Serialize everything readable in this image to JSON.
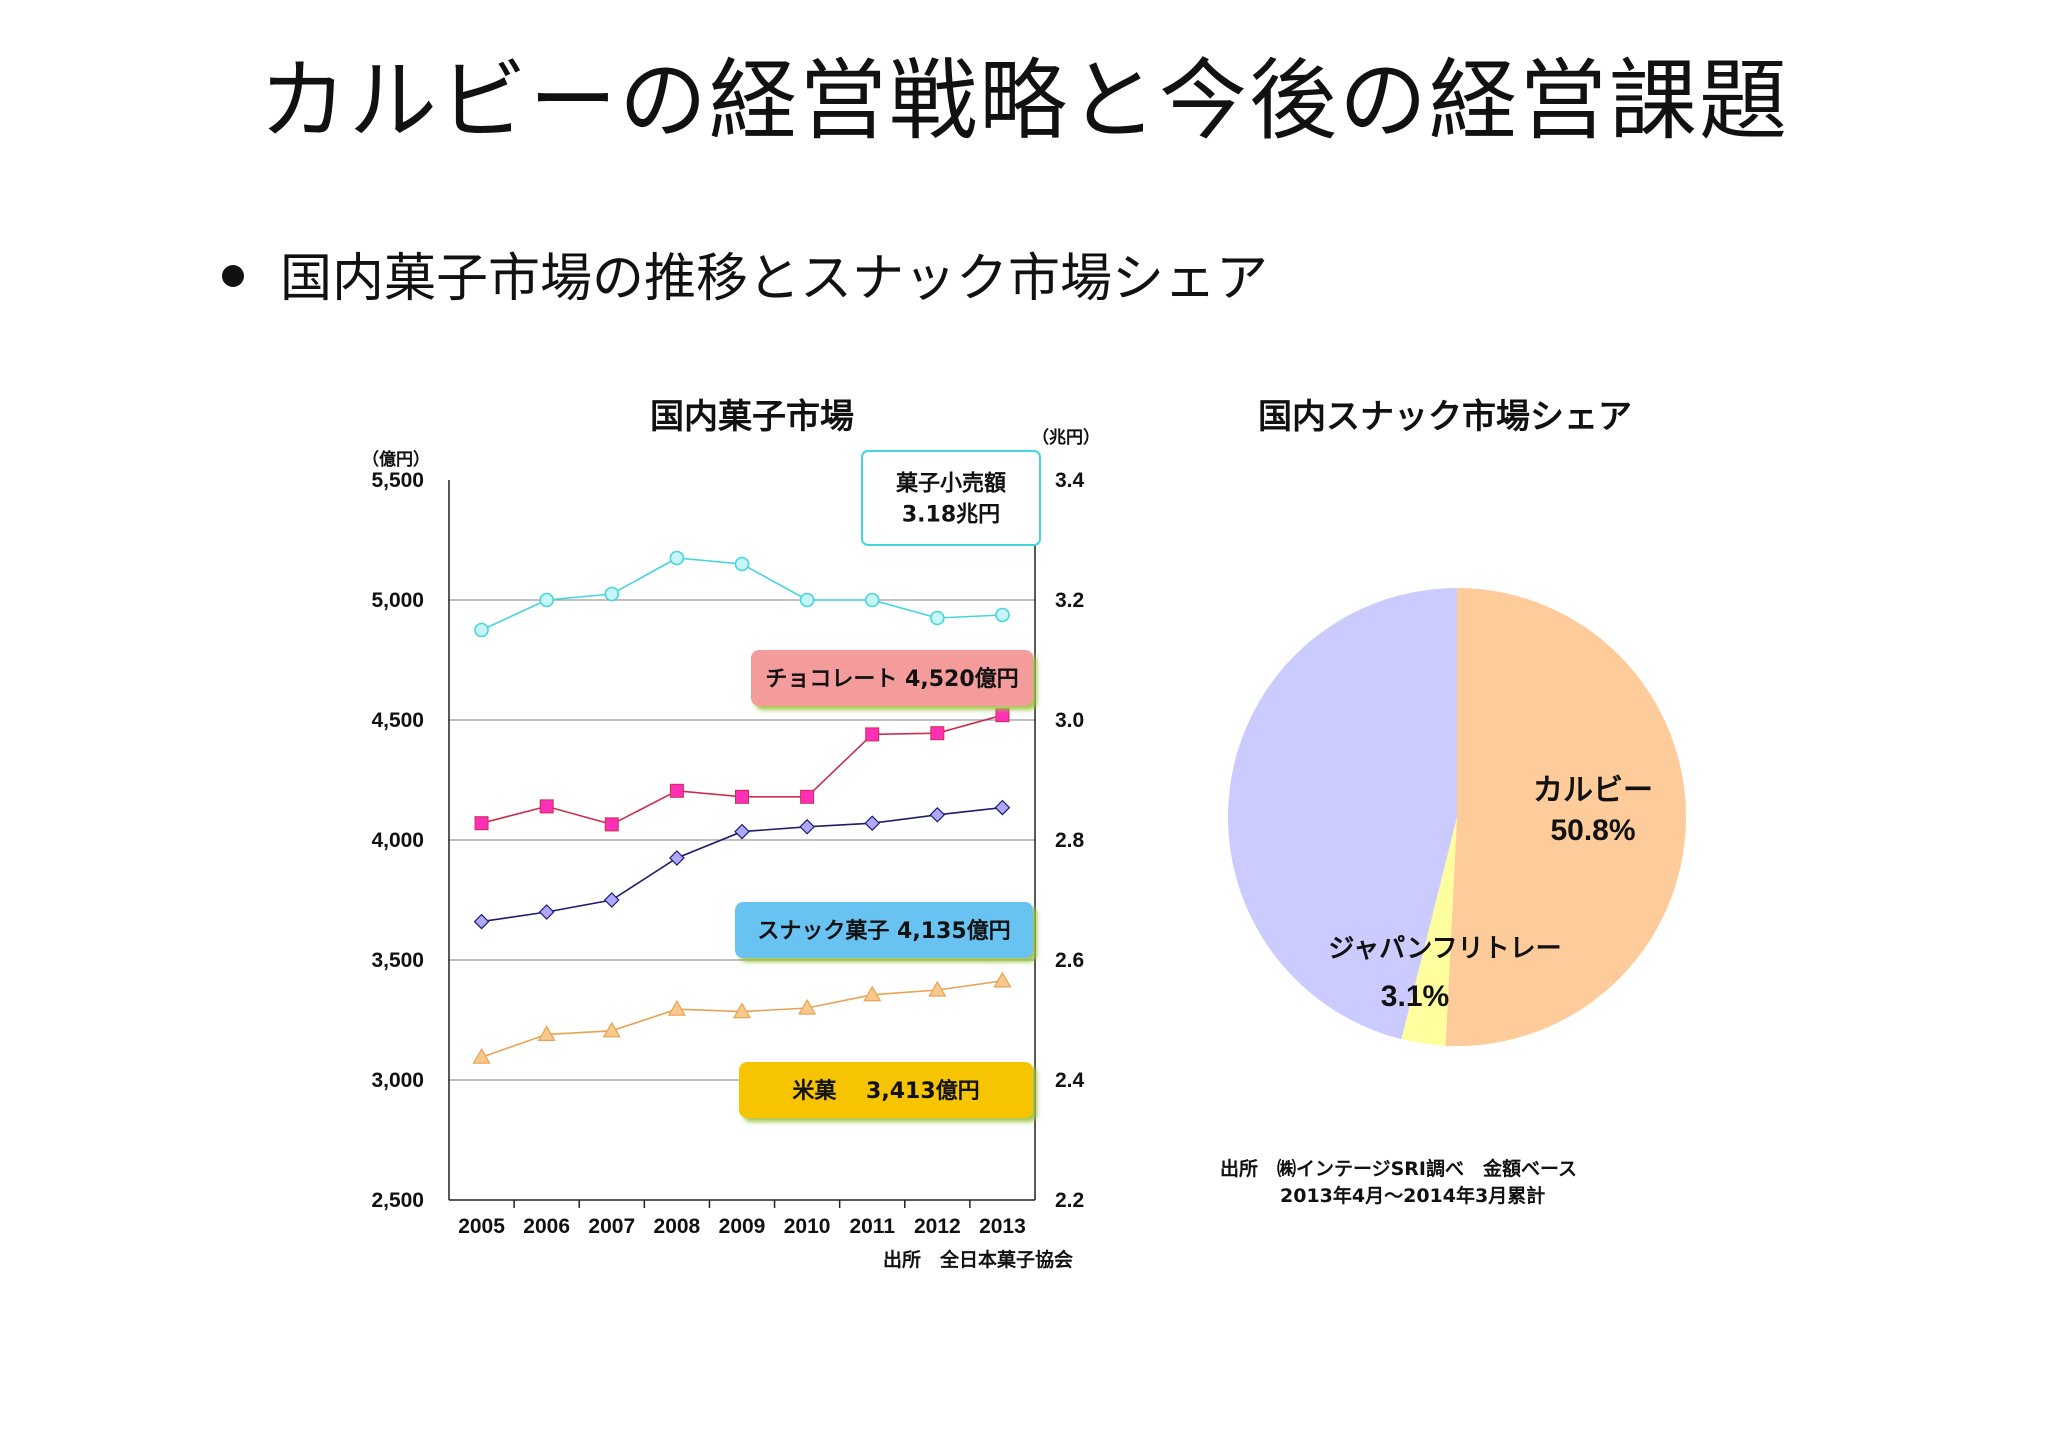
{
  "slide": {
    "title": "カルビーの経営戦略と今後の経営課題",
    "bullet": "国内菓子市場の推移とスナック市場シェア"
  },
  "chart_data": [
    {
      "type": "line",
      "title": "国内菓子市場",
      "left_axis_unit": "（億円）",
      "right_axis_unit": "（兆円）",
      "x": [
        "2005",
        "2006",
        "2007",
        "2008",
        "2009",
        "2010",
        "2011",
        "2012",
        "2013"
      ],
      "ylim": [
        2500,
        5500
      ],
      "y_ticks": [
        "2,500",
        "3,000",
        "3,500",
        "4,000",
        "4,500",
        "5,000",
        "5,500"
      ],
      "y2lim": [
        2.2,
        3.4
      ],
      "y2_ticks": [
        "2.2",
        "2.4",
        "2.6",
        "2.8",
        "3.0",
        "3.2",
        "3.4"
      ],
      "grid": true,
      "series": [
        {
          "name": "菓子小売額",
          "label_lines": [
            "菓子小売額",
            "3.18兆円"
          ],
          "axis": "right",
          "marker": "circle",
          "color": "#44d6dc",
          "marker_fill": "#c8f6f8",
          "values": [
            3.15,
            3.2,
            3.21,
            3.27,
            3.26,
            3.2,
            3.2,
            3.17,
            3.175
          ]
        },
        {
          "name": "チョコレート",
          "label_lines": [
            "チョコレート 4,520億円"
          ],
          "axis": "left",
          "marker": "square",
          "color": "#c8304c",
          "marker_fill": "#ff2fb8",
          "label_bg": "#f49b9b",
          "values": [
            4070,
            4140,
            4065,
            4205,
            4180,
            4180,
            4440,
            4445,
            4520
          ]
        },
        {
          "name": "スナック菓子",
          "label_lines": [
            "スナック菓子 4,135億円"
          ],
          "axis": "left",
          "marker": "diamond",
          "color": "#1c1c6c",
          "marker_fill": "#b0a8ff",
          "label_bg": "#67c3f2",
          "values": [
            3660,
            3700,
            3750,
            3925,
            4035,
            4055,
            4070,
            4105,
            4135
          ]
        },
        {
          "name": "米菓",
          "label_lines": [
            "米菓　 3,413億円"
          ],
          "axis": "left",
          "marker": "triangle",
          "color": "#e8a252",
          "marker_fill": "#f8c98a",
          "label_bg": "#f6c400",
          "values": [
            3095,
            3190,
            3205,
            3295,
            3285,
            3300,
            3355,
            3375,
            3413
          ]
        }
      ],
      "source": "出所　全日本菓子協会"
    },
    {
      "type": "pie",
      "title": "国内スナック市場シェア",
      "slices": [
        {
          "label": "カルビー",
          "value_label": "50.8%",
          "value": 50.8,
          "color": "#fecb9a"
        },
        {
          "label": "ジャパンフリトレー",
          "value_label": "3.1%",
          "value": 3.1,
          "color": "#fefe9e"
        },
        {
          "label": "",
          "value_label": "",
          "value": 46.1,
          "color": "#cccbff"
        }
      ],
      "source_lines": [
        "出所　㈱インテージSRI調べ　金額ベース",
        "2013年4月～2014年3月累計"
      ]
    }
  ]
}
